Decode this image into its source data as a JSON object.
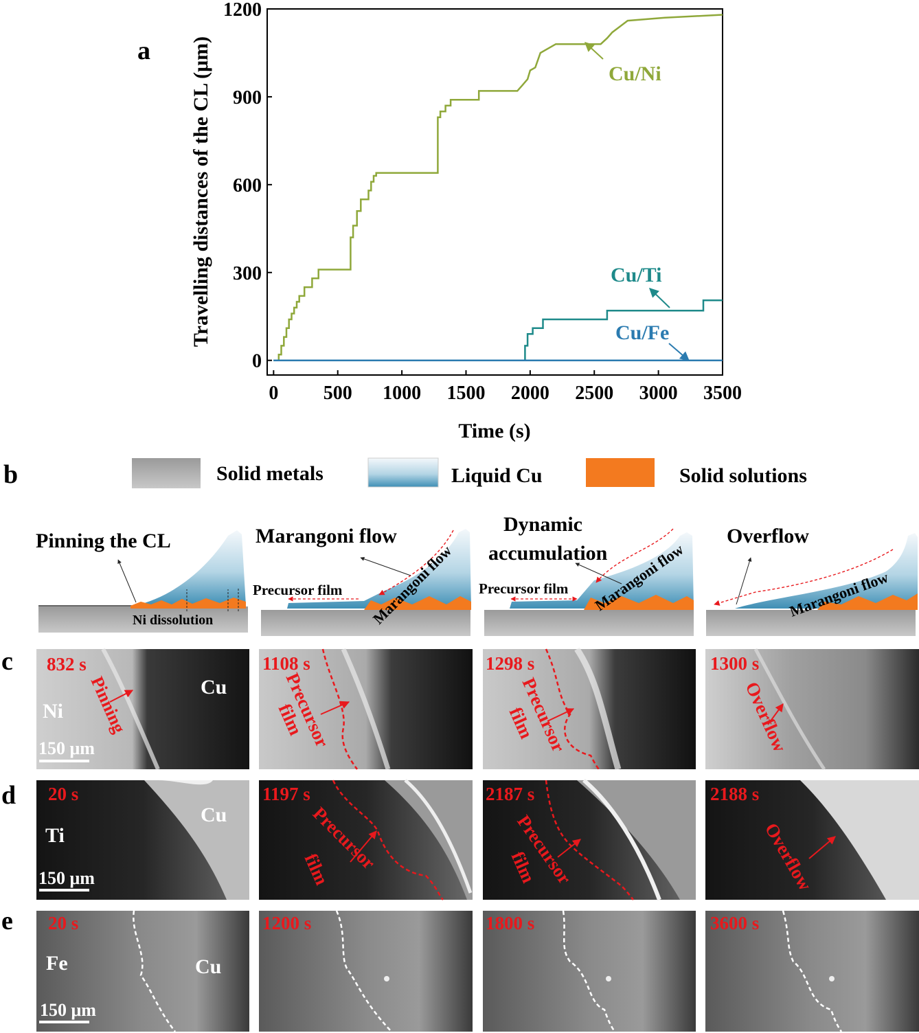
{
  "panel_letters": {
    "a": "a",
    "b": "b",
    "c": "c",
    "d": "d",
    "e": "e"
  },
  "colors": {
    "cu_ni": "#8fa83a",
    "cu_ti": "#1e8a8a",
    "cu_fe": "#2b7bb0",
    "annot": "#e8191d",
    "solid": "#a9a9a9",
    "liquid": "#4a9bbf",
    "solution": "#f37a1f"
  },
  "chart_data": {
    "type": "line",
    "title": "",
    "xlabel": "Time (s)",
    "ylabel": "Travelling distances of the CL (μm)",
    "xlim": [
      -50,
      3500
    ],
    "ylim": [
      -50,
      1200
    ],
    "xticks": [
      0,
      500,
      1000,
      1500,
      2000,
      2500,
      3000,
      3500
    ],
    "yticks": [
      0,
      300,
      600,
      900,
      1200
    ],
    "series": [
      {
        "name": "Cu/Ni",
        "color": "#8fa83a",
        "x": [
          0,
          20,
          40,
          40,
          60,
          60,
          80,
          80,
          100,
          100,
          120,
          120,
          140,
          140,
          160,
          160,
          180,
          180,
          200,
          200,
          240,
          240,
          300,
          300,
          350,
          350,
          400,
          400,
          600,
          600,
          620,
          620,
          650,
          650,
          680,
          680,
          740,
          740,
          760,
          760,
          780,
          780,
          800,
          800,
          1280,
          1280,
          1300,
          1300,
          1340,
          1340,
          1380,
          1380,
          1600,
          1600,
          1900,
          1940,
          1960,
          1980,
          1980,
          2000,
          2000,
          2040,
          2040,
          2080,
          2080,
          2200,
          2200,
          2550,
          2550,
          2600,
          2600,
          2640,
          2640,
          2700,
          2700,
          2760,
          2760,
          3050,
          3050,
          3500
        ],
        "y": [
          0,
          0,
          0,
          20,
          20,
          50,
          50,
          80,
          80,
          110,
          110,
          140,
          140,
          160,
          160,
          180,
          180,
          200,
          200,
          220,
          220,
          250,
          250,
          280,
          280,
          310,
          310,
          310,
          310,
          420,
          420,
          460,
          460,
          510,
          510,
          550,
          550,
          580,
          580,
          610,
          610,
          630,
          630,
          640,
          640,
          830,
          830,
          850,
          850,
          870,
          870,
          890,
          890,
          920,
          920,
          940,
          950,
          960,
          960,
          990,
          990,
          1000,
          1000,
          1050,
          1050,
          1080,
          1080,
          1080,
          1080,
          1100,
          1100,
          1120,
          1120,
          1140,
          1140,
          1160,
          1160,
          1170,
          1170,
          1180
        ]
      },
      {
        "name": "Cu/Ti",
        "color": "#1e8a8a",
        "x": [
          0,
          1960,
          1960,
          1980,
          1980,
          2020,
          2020,
          2100,
          2100,
          2600,
          2600,
          3350,
          3350,
          3500
        ],
        "y": [
          0,
          0,
          50,
          50,
          90,
          90,
          110,
          110,
          140,
          140,
          170,
          170,
          205,
          205
        ]
      },
      {
        "name": "Cu/Fe",
        "color": "#2b7bb0",
        "x": [
          0,
          3500
        ],
        "y": [
          0,
          0
        ]
      }
    ],
    "annotations": [
      {
        "text": "Cu/Ni",
        "series": "Cu/Ni"
      },
      {
        "text": "Cu/Ti",
        "series": "Cu/Ti"
      },
      {
        "text": "Cu/Fe",
        "series": "Cu/Fe"
      }
    ]
  },
  "legend": [
    {
      "label": "Solid metals"
    },
    {
      "label": "Liquid Cu"
    },
    {
      "label": "Solid solutions"
    }
  ],
  "schematics": [
    {
      "title": "Pinning the CL",
      "sub": "Ni dissolution"
    },
    {
      "title": "Marangoni flow",
      "film": "Precursor film",
      "flow": "Marangoni flow"
    },
    {
      "title1": "Dynamic",
      "title2": "accumulation",
      "film": "Precursor film",
      "flow": "Marangoni flow"
    },
    {
      "title": "Overflow",
      "flow": "Marangoni flow"
    }
  ],
  "row_c": {
    "substrate": "Ni",
    "liquid": "Cu",
    "scale": "150 μm",
    "frames": [
      {
        "time": "832 s",
        "label": "Pinning"
      },
      {
        "time": "1108 s",
        "label1": "Precursor",
        "label2": "film"
      },
      {
        "time": "1298 s",
        "label1": "Precursor",
        "label2": "film"
      },
      {
        "time": "1300 s",
        "label": "Overflow"
      }
    ]
  },
  "row_d": {
    "substrate": "Ti",
    "liquid": "Cu",
    "scale": "150 μm",
    "frames": [
      {
        "time": "20 s"
      },
      {
        "time": "1197 s",
        "label1": "Precursor",
        "label2": "film"
      },
      {
        "time": "2187 s",
        "label1": "Precursor",
        "label2": "film"
      },
      {
        "time": "2188 s",
        "label": "Overflow"
      }
    ]
  },
  "row_e": {
    "substrate": "Fe",
    "liquid": "Cu",
    "scale": "150 μm",
    "frames": [
      {
        "time": "20 s"
      },
      {
        "time": "1200 s"
      },
      {
        "time": "1800 s"
      },
      {
        "time": "3600 s"
      }
    ]
  }
}
